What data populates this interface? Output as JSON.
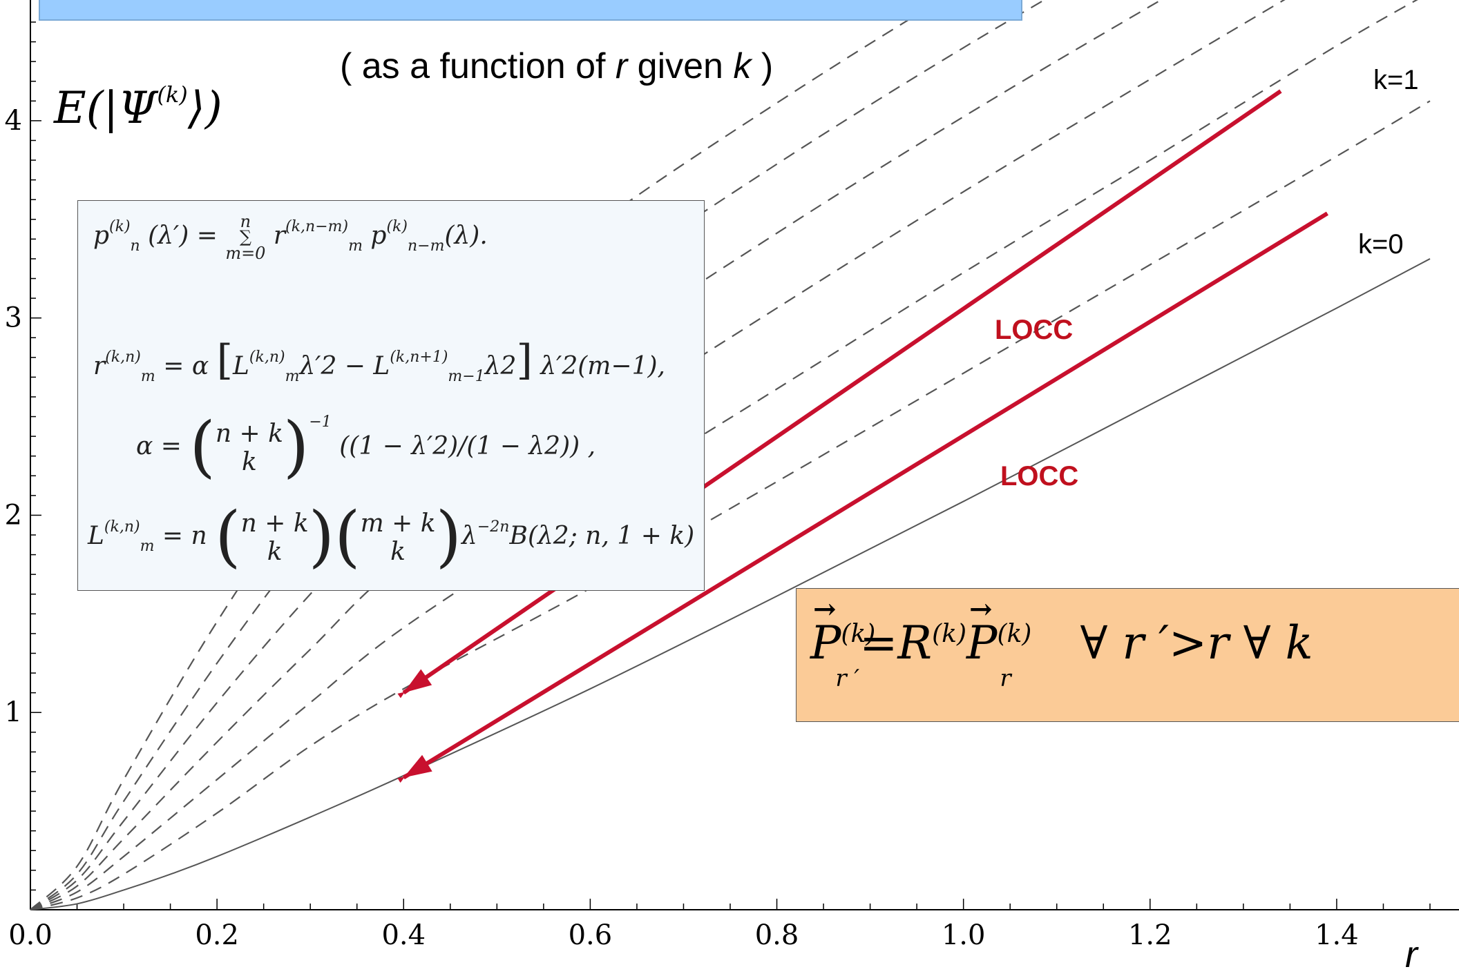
{
  "subtitle": {
    "pre": "( as a function of ",
    "r": "r",
    "mid": " given ",
    "k": "k",
    "post": " )"
  },
  "y_label": {
    "text": "E(|Ψ",
    "sup": "(k)",
    "close": "⟩)"
  },
  "x_label": "r",
  "curve_labels": {
    "k1": "k=1",
    "k0": "k=0"
  },
  "locc_labels": [
    "LOCC",
    "LOCC"
  ],
  "formulas": {
    "line1": {
      "lhs": "p",
      "lhs_sup": "(k)",
      "lhs_sub": "n",
      "lhs_arg": "(λ′) =",
      "sum": "∑",
      "sum_top": "n",
      "sum_bot": "m=0",
      "t1": "r",
      "t1_sup": "(k,n−m)",
      "t1_sub": "m",
      "t2": "p",
      "t2_sup": "(k)",
      "t2_sub": "n−m",
      "t2_arg": "(λ)."
    },
    "line2": {
      "lhs": "r",
      "lhs_sup": "(k,n)",
      "lhs_sub": "m",
      "eq": "=  α",
      "L1": "L",
      "L1_sup": "(k,n)",
      "L1_sub": "m",
      "mid": "λ′2 − ",
      "L2": "L",
      "L2_sup": "(k,n+1)",
      "L2_sub": "m−1",
      "end": "λ2",
      "tail": "λ′2(m−1),"
    },
    "line3": {
      "lhs": "α  =",
      "top": "n + k",
      "bot": "k",
      "exp": "−1",
      "tail": "((1 − λ′2)/(1 − λ2)) ,"
    },
    "line4": {
      "lhs": "L",
      "lhs_sup": "(k,n)",
      "lhs_sub": "m",
      "eq": "=  n",
      "b1_top": "n + k",
      "b1_bot": "k",
      "b2_top": "m + k",
      "b2_bot": "k",
      "tail": "λ",
      "tail_sup": "−2n",
      "tail2": "B(λ2; n, 1 + k)"
    }
  },
  "equation": {
    "P": "P",
    "sup": "(k)",
    "sub_prime": "r ′",
    "eq": "=R",
    "R_sup": "(k)",
    "P2": "P",
    "sub": "r",
    "quant": "∀ r ′>r   ∀ k"
  },
  "colors": {
    "arrow": "#c8102e",
    "banner": "#99ccff",
    "formula_bg": "#f3f8fc",
    "eq_bg": "#fbcb97",
    "curve": "#555555"
  },
  "chart_data": {
    "type": "line",
    "xlim": [
      0,
      1.5
    ],
    "ylim": [
      0,
      4.5
    ],
    "xticks": [
      "0.0",
      "0.2",
      "0.4",
      "0.6",
      "0.8",
      "1.0",
      "1.2",
      "1.4"
    ],
    "yticks": [
      "1",
      "2",
      "3",
      "4"
    ],
    "series": [
      {
        "name": "k=0",
        "style": "solid",
        "x": [
          0.0,
          0.05,
          0.1,
          0.15,
          0.2,
          0.3,
          0.4,
          0.6,
          0.8,
          1.0,
          1.2,
          1.4,
          1.5
        ],
        "y": [
          0.0,
          0.03,
          0.1,
          0.18,
          0.27,
          0.47,
          0.68,
          1.12,
          1.59,
          2.07,
          2.56,
          3.05,
          3.3
        ]
      },
      {
        "name": "k=1",
        "style": "dashed",
        "x": [
          0.0,
          0.05,
          0.1,
          0.2,
          0.3,
          0.4,
          0.6,
          0.8,
          1.0,
          1.2,
          1.4,
          1.5
        ],
        "y": [
          0.0,
          0.06,
          0.18,
          0.49,
          0.83,
          1.12,
          1.63,
          2.17,
          2.72,
          3.27,
          3.82,
          4.1
        ]
      },
      {
        "name": "",
        "style": "dashed",
        "x": [
          0.0,
          0.05,
          0.1,
          0.2,
          0.3,
          0.4,
          0.6,
          0.8,
          1.0,
          1.2,
          1.4,
          1.5
        ],
        "y": [
          0.0,
          0.09,
          0.27,
          0.66,
          1.05,
          1.43,
          2.05,
          2.64,
          3.23,
          3.8,
          4.38,
          4.65
        ]
      },
      {
        "name": "",
        "style": "dashed",
        "x": [
          0.0,
          0.05,
          0.1,
          0.2,
          0.3,
          0.4,
          0.6,
          0.8,
          1.0,
          1.2,
          1.4,
          1.5
        ],
        "y": [
          0.0,
          0.12,
          0.36,
          0.85,
          1.32,
          1.77,
          2.44,
          3.05,
          3.64,
          4.21,
          4.77,
          5.05
        ]
      },
      {
        "name": "",
        "style": "dashed",
        "x": [
          0.0,
          0.05,
          0.1,
          0.2,
          0.3,
          0.4,
          0.6,
          0.8,
          1.0,
          1.2,
          1.4
        ],
        "y": [
          0.0,
          0.15,
          0.45,
          1.05,
          1.6,
          2.08,
          2.8,
          3.43,
          4.02,
          4.58,
          5.12
        ]
      },
      {
        "name": "",
        "style": "dashed",
        "x": [
          0.0,
          0.05,
          0.1,
          0.2,
          0.3,
          0.4,
          0.6,
          0.8,
          1.0,
          1.2,
          1.4
        ],
        "y": [
          0.0,
          0.18,
          0.55,
          1.25,
          1.88,
          2.4,
          3.14,
          3.78,
          4.37,
          4.92,
          5.45
        ]
      },
      {
        "name": "",
        "style": "dashed",
        "x": [
          0.0,
          0.05,
          0.1,
          0.2,
          0.3,
          0.4,
          0.6,
          0.8,
          1.0,
          1.2
        ],
        "y": [
          0.0,
          0.22,
          0.66,
          1.46,
          2.15,
          2.7,
          3.45,
          4.09,
          4.68,
          5.22
        ]
      }
    ],
    "arrows": [
      {
        "label": "LOCC",
        "from": [
          1.34,
          4.15
        ],
        "to": [
          0.4,
          1.1
        ]
      },
      {
        "label": "LOCC",
        "from": [
          1.39,
          3.53
        ],
        "to": [
          0.4,
          0.67
        ]
      }
    ]
  }
}
